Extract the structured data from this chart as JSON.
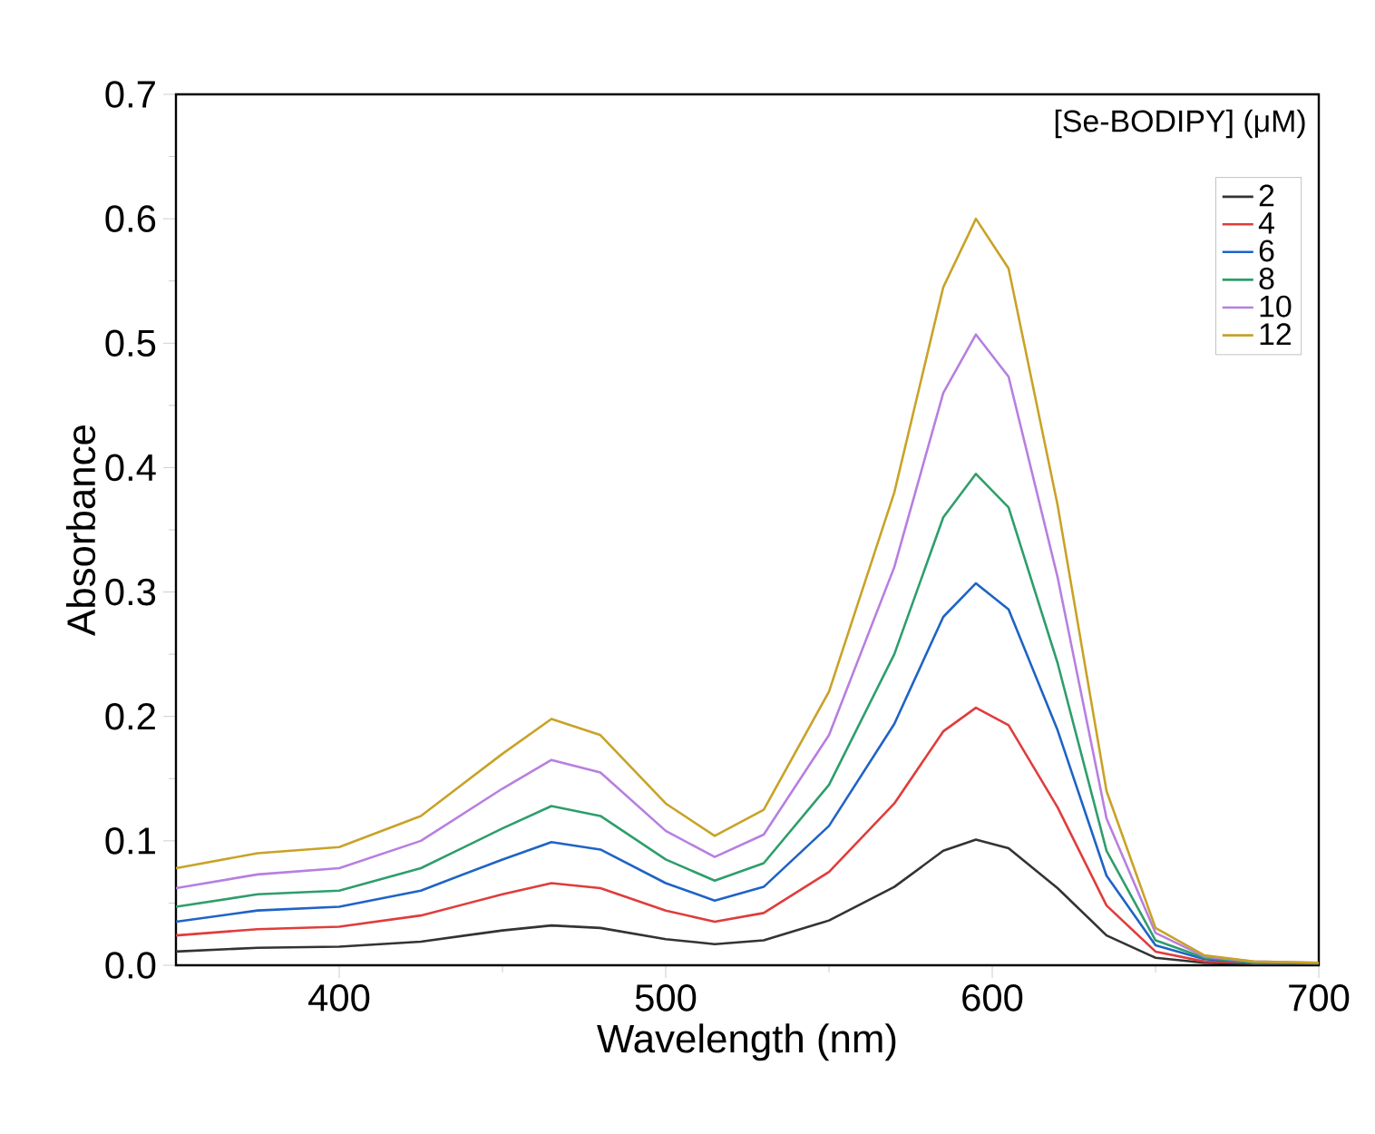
{
  "chart_data": {
    "type": "line",
    "xlabel": "Wavelength (nm)",
    "ylabel": "Absorbance",
    "legend_title": "[Se-BODIPY] (μM)",
    "x": [
      350,
      375,
      400,
      425,
      450,
      465,
      480,
      500,
      515,
      530,
      550,
      570,
      585,
      595,
      605,
      620,
      635,
      650,
      665,
      680,
      700
    ],
    "series": [
      {
        "name": "2",
        "color": "#333333",
        "values": [
          0.011,
          0.014,
          0.015,
          0.019,
          0.028,
          0.032,
          0.03,
          0.021,
          0.017,
          0.02,
          0.036,
          0.063,
          0.092,
          0.101,
          0.094,
          0.062,
          0.024,
          0.006,
          0.002,
          0.001,
          0.001
        ]
      },
      {
        "name": "4",
        "color": "#e03c3c",
        "values": [
          0.024,
          0.029,
          0.031,
          0.04,
          0.057,
          0.066,
          0.062,
          0.044,
          0.035,
          0.042,
          0.075,
          0.13,
          0.188,
          0.207,
          0.193,
          0.127,
          0.048,
          0.011,
          0.003,
          0.002,
          0.002
        ]
      },
      {
        "name": "6",
        "color": "#1f63c6",
        "values": [
          0.035,
          0.044,
          0.047,
          0.06,
          0.085,
          0.099,
          0.093,
          0.066,
          0.052,
          0.063,
          0.112,
          0.194,
          0.28,
          0.307,
          0.286,
          0.189,
          0.072,
          0.016,
          0.005,
          0.002,
          0.002
        ]
      },
      {
        "name": "8",
        "color": "#2e9e6b",
        "values": [
          0.047,
          0.057,
          0.06,
          0.078,
          0.11,
          0.128,
          0.12,
          0.085,
          0.068,
          0.082,
          0.145,
          0.25,
          0.36,
          0.395,
          0.368,
          0.243,
          0.092,
          0.02,
          0.006,
          0.002,
          0.002
        ]
      },
      {
        "name": "10",
        "color": "#b77fe0",
        "values": [
          0.062,
          0.073,
          0.078,
          0.1,
          0.142,
          0.165,
          0.155,
          0.108,
          0.087,
          0.105,
          0.185,
          0.32,
          0.46,
          0.507,
          0.473,
          0.312,
          0.118,
          0.026,
          0.007,
          0.003,
          0.002
        ]
      },
      {
        "name": "12",
        "color": "#c9a227",
        "values": [
          0.078,
          0.09,
          0.095,
          0.12,
          0.17,
          0.198,
          0.185,
          0.13,
          0.104,
          0.125,
          0.22,
          0.38,
          0.545,
          0.6,
          0.56,
          0.37,
          0.14,
          0.03,
          0.008,
          0.003,
          0.002
        ]
      }
    ],
    "xlim": [
      350,
      700
    ],
    "xticks": [
      400,
      500,
      600,
      700
    ],
    "ylim": [
      0,
      0.7
    ],
    "yticks": [
      {
        "value": 0,
        "label": "0.0"
      },
      0.1,
      0.2,
      0.3,
      0.4,
      0.5,
      0.6,
      0.7
    ],
    "legend": "top right",
    "grid": false,
    "marker": "none",
    "line_style": "solid"
  }
}
